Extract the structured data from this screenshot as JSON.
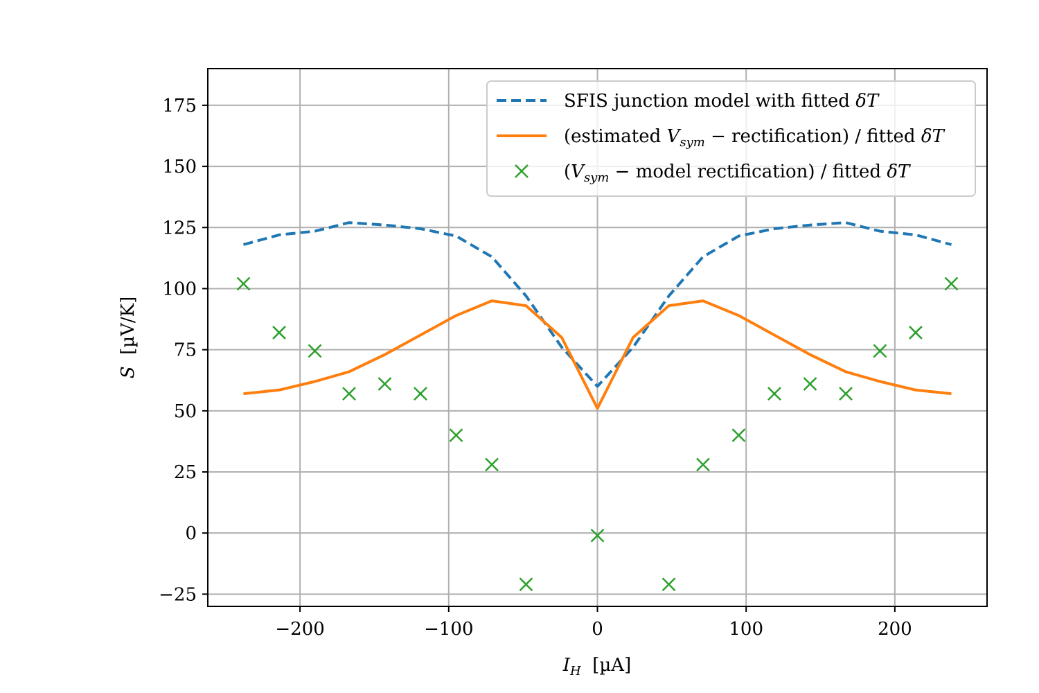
{
  "chart_data": {
    "type": "line",
    "xlabel": "I_H  [µA]",
    "ylabel": "S  [µV/K]",
    "xlim": [
      -262,
      262
    ],
    "ylim": [
      -30,
      190
    ],
    "xticks": [
      -200,
      -100,
      0,
      100,
      200
    ],
    "yticks": [
      -25,
      0,
      25,
      50,
      75,
      100,
      125,
      150,
      175
    ],
    "xtick_labels": [
      "−200",
      "−100",
      "0",
      "100",
      "200"
    ],
    "ytick_labels": [
      "−25",
      "0",
      "25",
      "50",
      "75",
      "100",
      "125",
      "150",
      "175"
    ],
    "grid": true,
    "legend_position": "top-right",
    "series": [
      {
        "name": "SFIS junction model with fitted δT",
        "style": "dashed",
        "color": "#1f77b4",
        "x": [
          -238,
          -214,
          -190,
          -167,
          -143,
          -119,
          -95,
          -71,
          -48,
          -24,
          0,
          24,
          48,
          71,
          95,
          119,
          143,
          167,
          190,
          214,
          238
        ],
        "y": [
          118,
          122,
          123.5,
          127,
          126,
          124.5,
          121.5,
          113,
          97,
          76,
          60,
          76,
          97,
          113,
          121.5,
          124.5,
          126,
          127,
          123.5,
          122,
          118
        ]
      },
      {
        "name": "(estimated V_sym − rectification) / fitted δT",
        "style": "solid",
        "color": "#ff7f0e",
        "x": [
          -238,
          -214,
          -190,
          -167,
          -143,
          -119,
          -95,
          -71,
          -48,
          -24,
          0,
          24,
          48,
          71,
          95,
          119,
          143,
          167,
          190,
          214,
          238
        ],
        "y": [
          57,
          58.5,
          62,
          66,
          73,
          81,
          89,
          95,
          93,
          80,
          51,
          80,
          93,
          95,
          89,
          81,
          73,
          66,
          62,
          58.5,
          57
        ]
      },
      {
        "name": "(V_sym − model rectification) / fitted δT",
        "style": "markers",
        "marker": "x",
        "color": "#2ca02c",
        "x": [
          -238,
          -214,
          -190,
          -167,
          -143,
          -119,
          -95,
          -71,
          -48,
          0,
          48,
          71,
          95,
          119,
          143,
          167,
          190,
          214,
          238
        ],
        "y": [
          102,
          82,
          74.5,
          57,
          61,
          57,
          40,
          28,
          -21,
          -1,
          -21,
          28,
          40,
          57,
          61,
          57,
          74.5,
          82,
          102
        ]
      }
    ]
  }
}
